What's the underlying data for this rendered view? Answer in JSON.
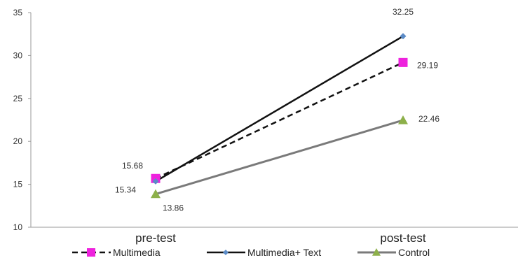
{
  "chart_data": {
    "type": "line",
    "categories": [
      "pre-test",
      "post-test"
    ],
    "ylim": [
      10,
      35
    ],
    "yticks": [
      10,
      15,
      20,
      25,
      30,
      35
    ],
    "grid": false,
    "legend_position": "bottom",
    "series": [
      {
        "name": "Multimedia",
        "values": [
          15.68,
          29.19
        ],
        "color": "#111111",
        "line_style": "dashed",
        "marker": "square",
        "marker_color": "#ee22dd"
      },
      {
        "name": "Multimedia+ Text",
        "values": [
          15.34,
          32.25
        ],
        "color": "#111111",
        "line_style": "solid",
        "marker": "diamond",
        "marker_color": "#5b8bc7"
      },
      {
        "name": "Control",
        "values": [
          13.86,
          22.46
        ],
        "color": "#7a7a7a",
        "line_style": "solid",
        "marker": "triangle",
        "marker_color": "#8db04a"
      }
    ]
  }
}
